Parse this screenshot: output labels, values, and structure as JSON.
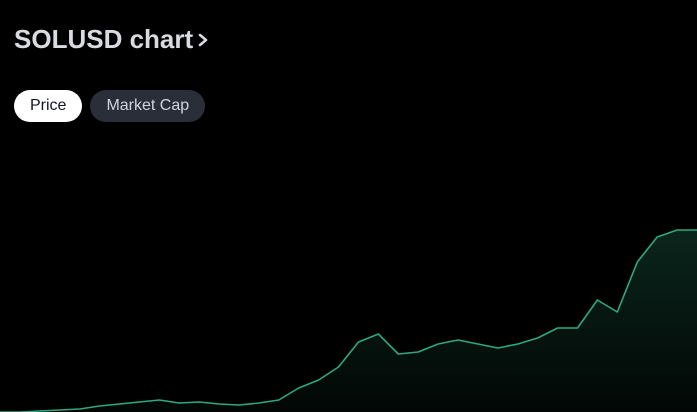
{
  "header": {
    "title": "SOLUSD chart"
  },
  "tabs": [
    "Price",
    "Market Cap"
  ],
  "chart_data": {
    "type": "line",
    "color": "#2fa882",
    "ylim": [
      0,
      262
    ],
    "values": [
      0,
      0,
      1,
      2,
      3,
      6,
      8,
      10,
      12,
      9,
      10,
      8,
      7,
      9,
      12,
      24,
      32,
      45,
      70,
      78,
      58,
      60,
      68,
      72,
      68,
      64,
      68,
      74,
      84,
      84,
      112,
      100,
      150,
      175,
      182,
      182
    ]
  }
}
